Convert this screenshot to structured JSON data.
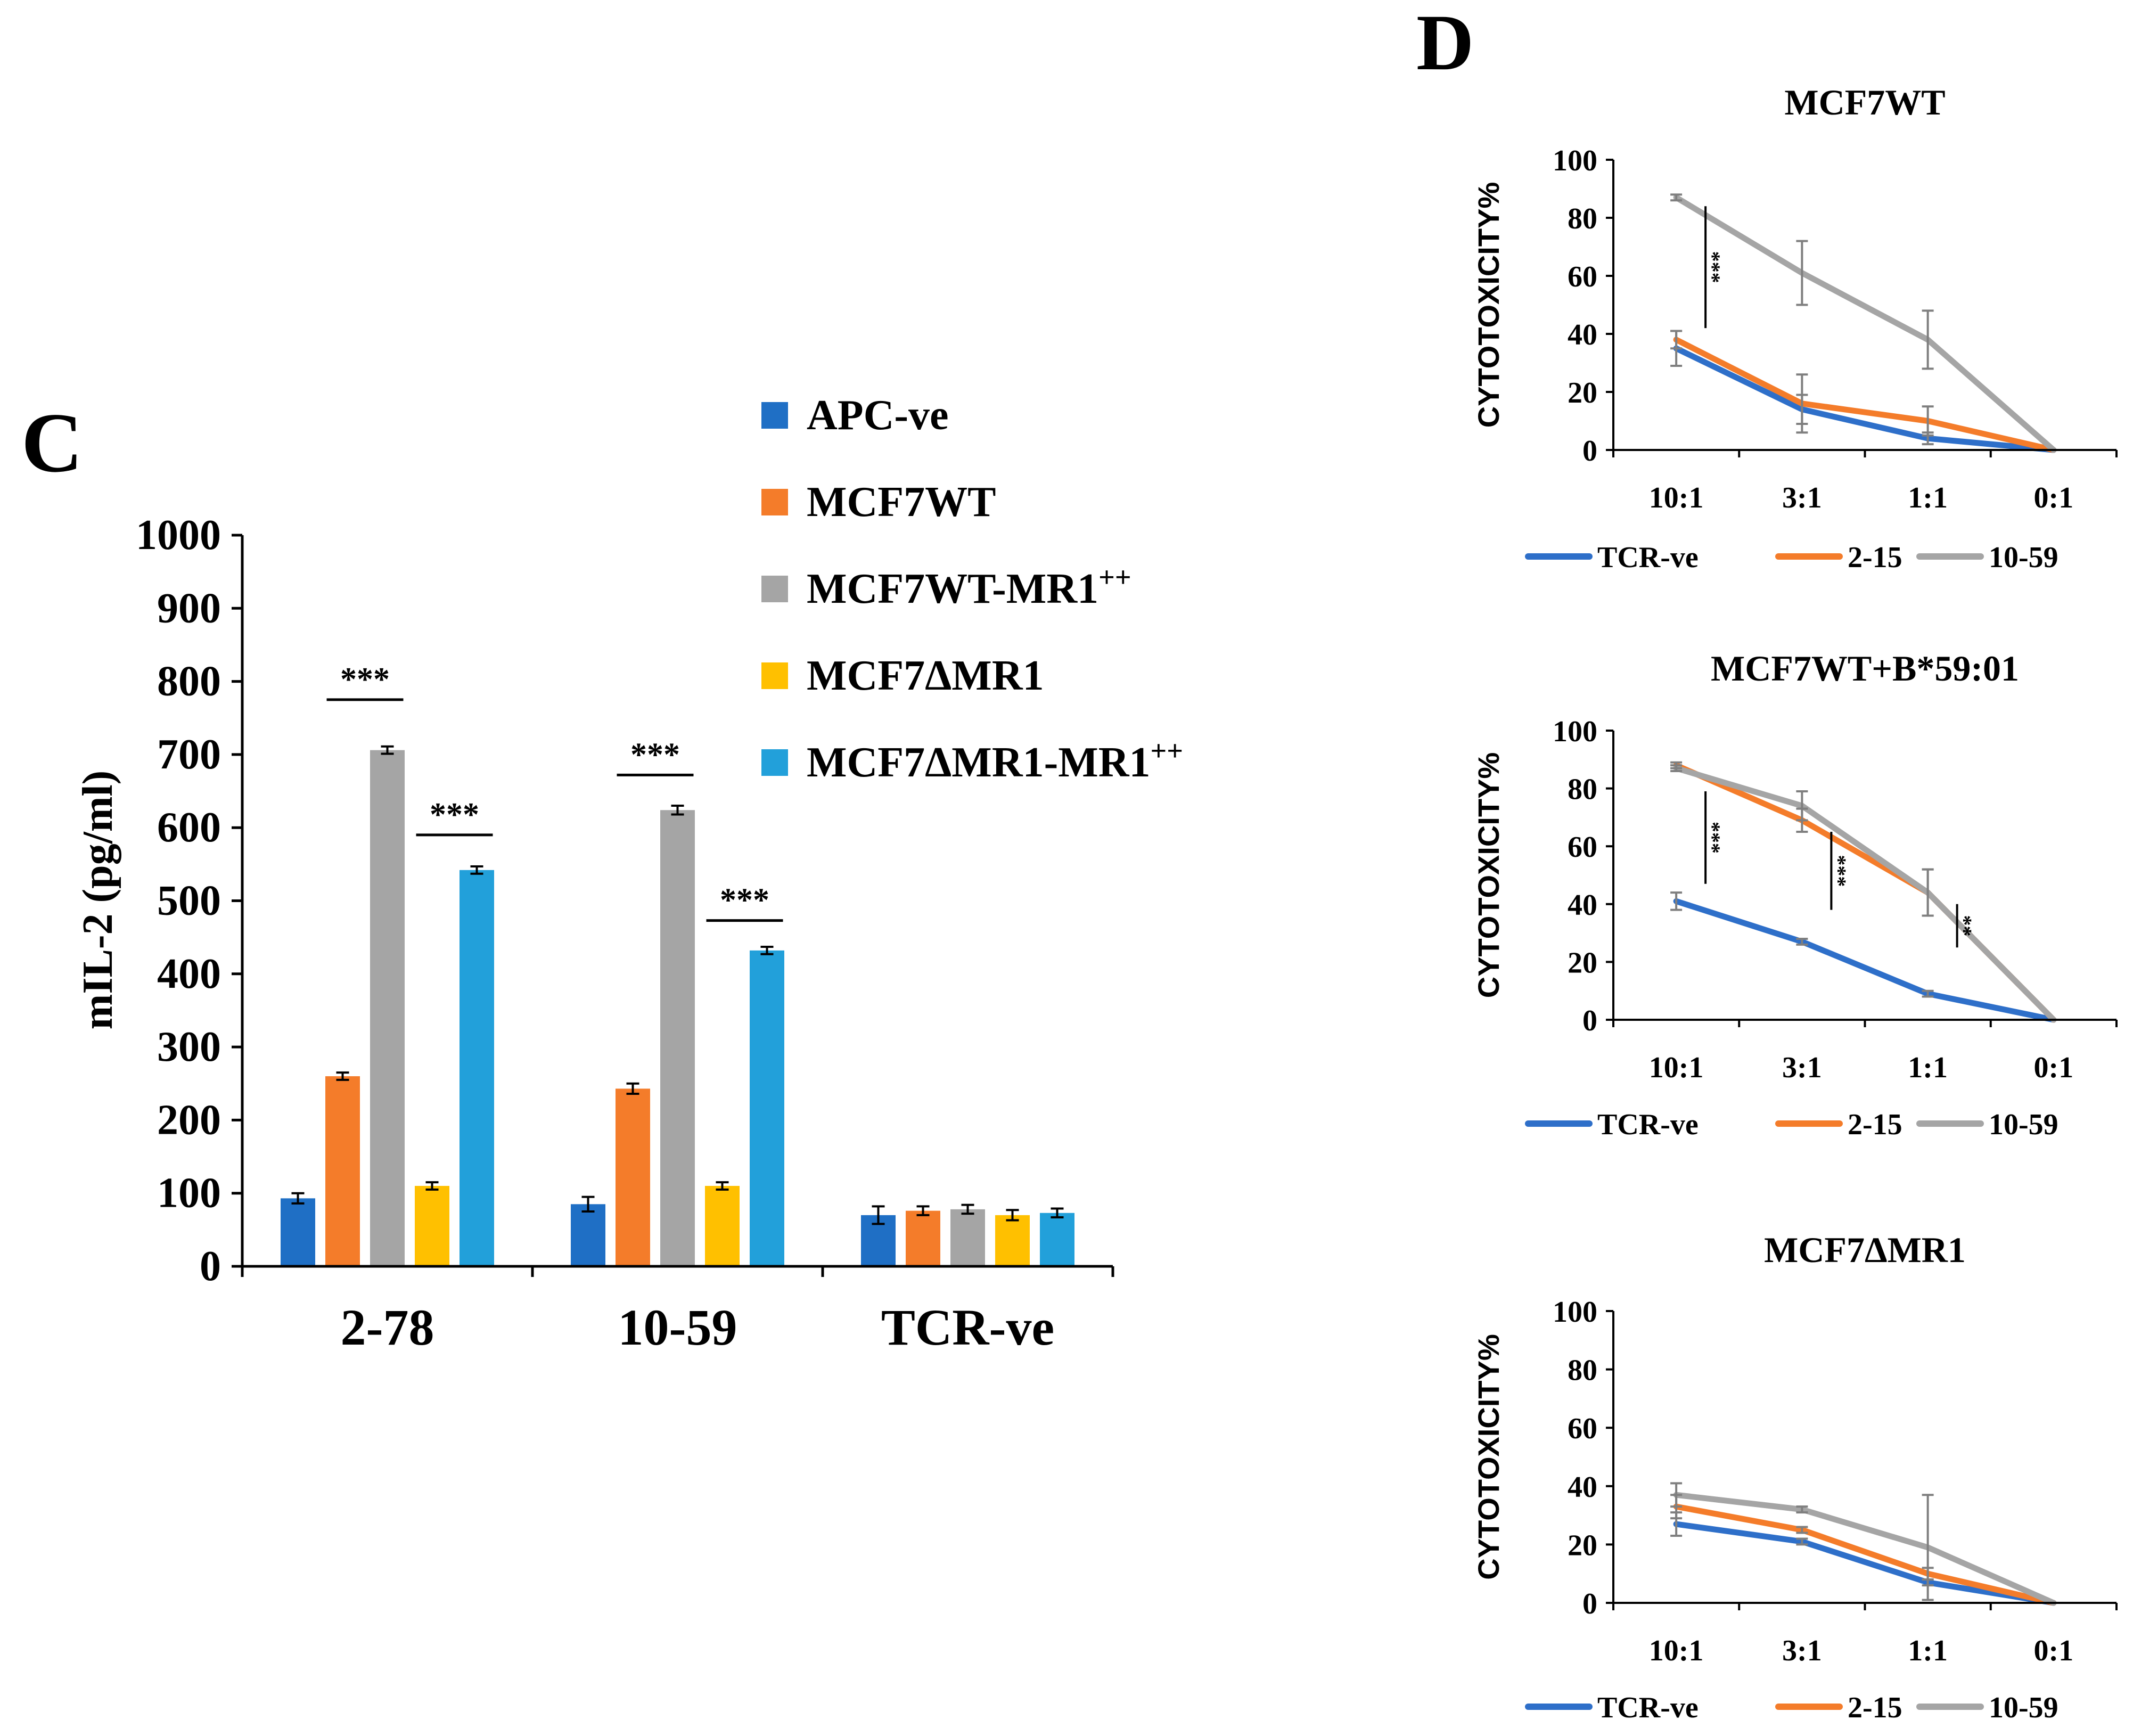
{
  "panels": {
    "c_letter": "C",
    "d_letter": "D"
  },
  "chart_data": [
    {
      "id": "C",
      "type": "bar",
      "title": "",
      "xlabel": "",
      "ylabel": "mIL-2 (pg/ml)",
      "ylim": [
        0,
        1000
      ],
      "yticks": [
        0,
        100,
        200,
        300,
        400,
        500,
        600,
        700,
        800,
        900,
        1000
      ],
      "categories": [
        "2-78",
        "10-59",
        "TCR-ve"
      ],
      "series": [
        {
          "name": "APC-ve",
          "label_base": "APC-ve",
          "label_sup": "",
          "color": "#1f6fc5",
          "values": [
            93,
            85,
            70
          ],
          "errors": [
            7,
            10,
            12
          ]
        },
        {
          "name": "MCF7WT",
          "label_base": "MCF7WT",
          "label_sup": "",
          "color": "#f47c2a",
          "values": [
            260,
            243,
            76
          ],
          "errors": [
            5,
            7,
            6
          ]
        },
        {
          "name": "MCF7WT-MR1++",
          "label_base": "MCF7WT-MR1",
          "label_sup": "++",
          "color": "#a5a5a5",
          "values": [
            706,
            624,
            78
          ],
          "errors": [
            5,
            6,
            6
          ]
        },
        {
          "name": "MCF7ΔMR1",
          "label_base": "MCF7ΔMR1",
          "label_sup": "",
          "color": "#ffc000",
          "values": [
            110,
            110,
            70
          ],
          "errors": [
            5,
            5,
            7
          ]
        },
        {
          "name": "MCF7ΔMR1-MR1++",
          "label_base": "MCF7ΔMR1-MR1",
          "label_sup": "++",
          "color": "#22a0da",
          "values": [
            542,
            432,
            73
          ],
          "errors": [
            5,
            5,
            6
          ]
        }
      ],
      "annotations": [
        {
          "text": "***",
          "category": "2-78",
          "from_series": 1,
          "to_series": 2,
          "at_value": 775
        },
        {
          "text": "***",
          "category": "2-78",
          "from_series": 3,
          "to_series": 4,
          "at_value": 590
        },
        {
          "text": "***",
          "category": "10-59",
          "from_series": 1,
          "to_series": 2,
          "at_value": 672
        },
        {
          "text": "***",
          "category": "10-59",
          "from_series": 3,
          "to_series": 4,
          "at_value": 473
        }
      ]
    },
    {
      "id": "D1",
      "type": "line",
      "title": "MCF7WT",
      "ylabel": "CYTOTOXICITY%",
      "ylim": [
        0,
        100
      ],
      "yticks": [
        0,
        20,
        40,
        60,
        80,
        100
      ],
      "categories": [
        "10:1",
        "3:1",
        "1:1",
        "0:1"
      ],
      "series": [
        {
          "name": "TCR-ve",
          "color": "#2e6fc9",
          "values": [
            35,
            14,
            4,
            0
          ],
          "errors": [
            6,
            5,
            2,
            0
          ]
        },
        {
          "name": "2-15",
          "color": "#f47c2a",
          "values": [
            38,
            16,
            10,
            0
          ],
          "errors": [
            3,
            10,
            5,
            0
          ]
        },
        {
          "name": "10-59",
          "color": "#a5a5a5",
          "values": [
            87,
            61,
            38,
            0
          ],
          "errors": [
            1,
            11,
            10,
            0
          ]
        }
      ],
      "annotations": [
        {
          "text": "***",
          "category": "10:1",
          "from_value": 42,
          "to_value": 84
        }
      ]
    },
    {
      "id": "D2",
      "type": "line",
      "title": "MCF7WT+B*59:01",
      "ylabel": "CYTOTOXICITY%",
      "ylim": [
        0,
        100
      ],
      "yticks": [
        0,
        20,
        40,
        60,
        80,
        100
      ],
      "categories": [
        "10:1",
        "3:1",
        "1:1",
        "0:1"
      ],
      "series": [
        {
          "name": "TCR-ve",
          "color": "#2e6fc9",
          "values": [
            41,
            27,
            9,
            0
          ],
          "errors": [
            3,
            1,
            1,
            0
          ]
        },
        {
          "name": "2-15",
          "color": "#f47c2a",
          "values": [
            88,
            69,
            44,
            0
          ],
          "errors": [
            1,
            4,
            8,
            0
          ]
        },
        {
          "name": "10-59",
          "color": "#a5a5a5",
          "values": [
            87,
            74,
            44,
            0
          ],
          "errors": [
            1,
            5,
            8,
            0
          ]
        }
      ],
      "annotations": [
        {
          "text": "***",
          "category": "10:1",
          "from_value": 47,
          "to_value": 79
        },
        {
          "text": "***",
          "category": "3:1",
          "from_value": 38,
          "to_value": 65
        },
        {
          "text": "**",
          "category": "1:1",
          "from_value": 25,
          "to_value": 40
        }
      ]
    },
    {
      "id": "D3",
      "type": "line",
      "title": "MCF7ΔMR1",
      "ylabel": "CYTOTOXICITY%",
      "ylim": [
        0,
        100
      ],
      "yticks": [
        0,
        20,
        40,
        60,
        80,
        100
      ],
      "categories": [
        "10:1",
        "3:1",
        "1:1",
        "0:1"
      ],
      "series": [
        {
          "name": "TCR-ve",
          "color": "#2e6fc9",
          "values": [
            27,
            21,
            7,
            0
          ],
          "errors": [
            4,
            1,
            1,
            0
          ]
        },
        {
          "name": "2-15",
          "color": "#f47c2a",
          "values": [
            33,
            25,
            10,
            0
          ],
          "errors": [
            4,
            1,
            2,
            0
          ]
        },
        {
          "name": "10-59",
          "color": "#a5a5a5",
          "values": [
            37,
            32,
            19,
            0
          ],
          "errors": [
            4,
            1,
            18,
            0
          ]
        }
      ],
      "annotations": []
    }
  ]
}
